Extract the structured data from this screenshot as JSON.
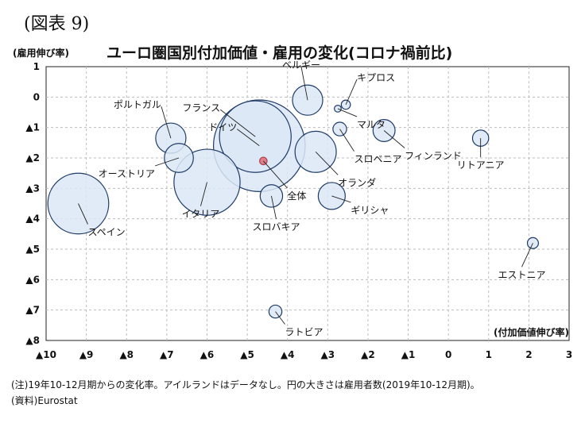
{
  "figure": {
    "label": "(図表 9)",
    "title": "ユーロ圏国別付加価値・雇用の変化(コロナ禍前比)",
    "note": "(注)19年10-12月期からの変化率。アイルランドはデータなし。円の大きさは雇用者数(2019年10-12月期)。",
    "source": "(資料)Eurostat"
  },
  "colors": {
    "bubble_fill": "#dbe8f6",
    "bubble_stroke": "#1f3b66",
    "highlight": "#e07f8a",
    "grid": "#bdbdbd"
  },
  "chart_data": {
    "type": "scatter",
    "title": "ユーロ圏国別付加価値・雇用の変化(コロナ禍前比)",
    "xlabel": "(付加価値伸び率)",
    "ylabel": "(雇用伸び率)",
    "xlim": [
      -10,
      3
    ],
    "ylim": [
      -8,
      1
    ],
    "grid": true,
    "x_ticks": [
      {
        "v": -10,
        "label": "▲10"
      },
      {
        "v": -9,
        "label": "▲9"
      },
      {
        "v": -8,
        "label": "▲8"
      },
      {
        "v": -7,
        "label": "▲7"
      },
      {
        "v": -6,
        "label": "▲6"
      },
      {
        "v": -5,
        "label": "▲5"
      },
      {
        "v": -4,
        "label": "▲4"
      },
      {
        "v": -3,
        "label": "▲3"
      },
      {
        "v": -2,
        "label": "▲2"
      },
      {
        "v": -1,
        "label": "▲1"
      },
      {
        "v": 0,
        "label": "0"
      },
      {
        "v": 1,
        "label": "1"
      },
      {
        "v": 2,
        "label": "2"
      },
      {
        "v": 3,
        "label": "3"
      }
    ],
    "y_ticks": [
      {
        "v": 1,
        "label": "1"
      },
      {
        "v": 0,
        "label": "0"
      },
      {
        "v": -1,
        "label": "▲1"
      },
      {
        "v": -2,
        "label": "▲2"
      },
      {
        "v": -3,
        "label": "▲3"
      },
      {
        "v": -4,
        "label": "▲4"
      },
      {
        "v": -5,
        "label": "▲5"
      },
      {
        "v": -6,
        "label": "▲6"
      },
      {
        "v": -7,
        "label": "▲7"
      },
      {
        "v": -8,
        "label": "▲8"
      }
    ],
    "points": [
      {
        "name": "フランス",
        "x": -4.8,
        "y": -1.3,
        "employment": 27.5
      },
      {
        "name": "ドイツ",
        "x": -4.7,
        "y": -1.6,
        "employment": 45.0
      },
      {
        "name": "イタリア",
        "x": -6.0,
        "y": -2.8,
        "employment": 23.4
      },
      {
        "name": "スペイン",
        "x": -9.2,
        "y": -3.5,
        "employment": 19.8
      },
      {
        "name": "オランダ",
        "x": -3.3,
        "y": -1.8,
        "employment": 9.1
      },
      {
        "name": "ベルギー",
        "x": -3.5,
        "y": -0.1,
        "employment": 4.9
      },
      {
        "name": "ポルトガル",
        "x": -6.9,
        "y": -1.35,
        "employment": 4.9
      },
      {
        "name": "オーストリア",
        "x": -6.7,
        "y": -2.0,
        "employment": 4.5
      },
      {
        "name": "ギリシャ",
        "x": -2.9,
        "y": -3.25,
        "employment": 3.9
      },
      {
        "name": "スロバキア",
        "x": -4.4,
        "y": -3.25,
        "employment": 2.7
      },
      {
        "name": "フィンランド",
        "x": -1.6,
        "y": -1.1,
        "employment": 2.6
      },
      {
        "name": "リトアニア",
        "x": 0.8,
        "y": -1.35,
        "employment": 1.4
      },
      {
        "name": "スロベニア",
        "x": -2.7,
        "y": -1.05,
        "employment": 1.0
      },
      {
        "name": "キプロス",
        "x": -2.55,
        "y": -0.25,
        "employment": 0.45
      },
      {
        "name": "マルタ",
        "x": -2.75,
        "y": -0.38,
        "employment": 0.25
      },
      {
        "name": "ラトビア",
        "x": -4.3,
        "y": -7.05,
        "employment": 0.9
      },
      {
        "name": "エストニア",
        "x": 2.1,
        "y": -4.8,
        "employment": 0.65
      },
      {
        "name": "全体",
        "x": -4.6,
        "y": -2.1,
        "employment": 0.3,
        "highlight": true
      }
    ]
  }
}
